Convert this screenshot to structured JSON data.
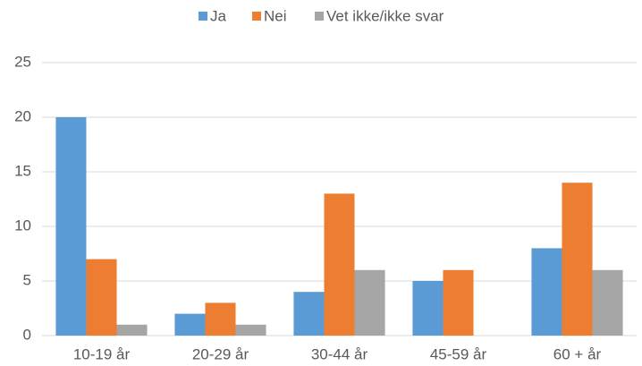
{
  "chart_data": {
    "type": "bar",
    "categories": [
      "10-19 år",
      "20-29 år",
      "30-44 år",
      "45-59 år",
      "60 + år"
    ],
    "series": [
      {
        "name": "Ja",
        "color": "#5b9bd5",
        "values": [
          20,
          2,
          4,
          5,
          8
        ]
      },
      {
        "name": "Nei",
        "color": "#ed7d31",
        "values": [
          7,
          3,
          13,
          6,
          14
        ]
      },
      {
        "name": "Vet ikke/ikke svar",
        "color": "#a5a5a5",
        "values": [
          1,
          1,
          6,
          0,
          6
        ]
      }
    ],
    "ylim": [
      0,
      25
    ],
    "yticks": [
      0,
      5,
      10,
      15,
      20,
      25
    ],
    "grid": true,
    "legend": "top"
  }
}
